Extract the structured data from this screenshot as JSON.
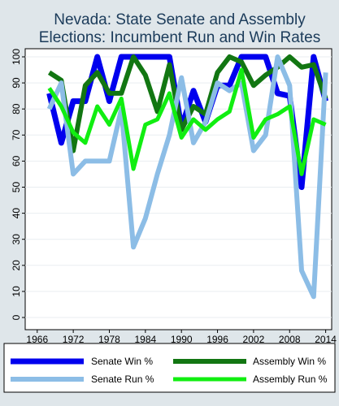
{
  "chart_data": {
    "type": "line",
    "title_lines": [
      "Nevada: State Senate and Assembly",
      "Elections: Incumbent Run and Win Rates"
    ],
    "xlabel": "",
    "ylabel": "",
    "xlim": [
      1964,
      2015
    ],
    "ylim": [
      0,
      100
    ],
    "xticks": [
      1966,
      1972,
      1978,
      1984,
      1990,
      1996,
      2002,
      2008,
      2014
    ],
    "yticks": [
      0,
      10,
      20,
      30,
      40,
      50,
      60,
      70,
      80,
      90,
      100
    ],
    "grid": "horizontal",
    "legend_position": "bottom",
    "x": [
      1968,
      1970,
      1972,
      1974,
      1976,
      1978,
      1980,
      1982,
      1984,
      1986,
      1988,
      1990,
      1992,
      1994,
      1996,
      1998,
      2000,
      2002,
      2004,
      2006,
      2008,
      2010,
      2012,
      2014
    ],
    "series": [
      {
        "name": "Senate Win %",
        "color": "#0000ee",
        "width": 7,
        "values": [
          86,
          67,
          83,
          83,
          100,
          83,
          100,
          100,
          100,
          100,
          100,
          73,
          87,
          75,
          89,
          89,
          100,
          100,
          100,
          86,
          85,
          50,
          100,
          83
        ]
      },
      {
        "name": "Assembly Win %",
        "color": "#127612",
        "width": 6,
        "values": [
          94,
          91,
          64,
          89,
          94,
          86,
          86,
          100,
          93,
          79,
          97,
          72,
          81,
          78,
          94,
          100,
          98,
          89,
          93,
          96,
          100,
          96,
          97,
          84
        ]
      },
      {
        "name": "Senate Run %",
        "color": "#8cbde6",
        "width": 6,
        "values": [
          80,
          90,
          55,
          60,
          60,
          60,
          80,
          27,
          38,
          55,
          70,
          92,
          67,
          75,
          90,
          87,
          90,
          64,
          70,
          100,
          89,
          18,
          8,
          94
        ]
      },
      {
        "name": "Assembly Run %",
        "color": "#11ee11",
        "width": 5,
        "values": [
          88,
          81,
          71,
          67,
          81,
          74,
          84,
          57,
          74,
          76,
          86,
          69,
          76,
          72,
          76,
          79,
          95,
          69,
          76,
          78,
          81,
          55,
          76,
          74
        ]
      }
    ]
  }
}
